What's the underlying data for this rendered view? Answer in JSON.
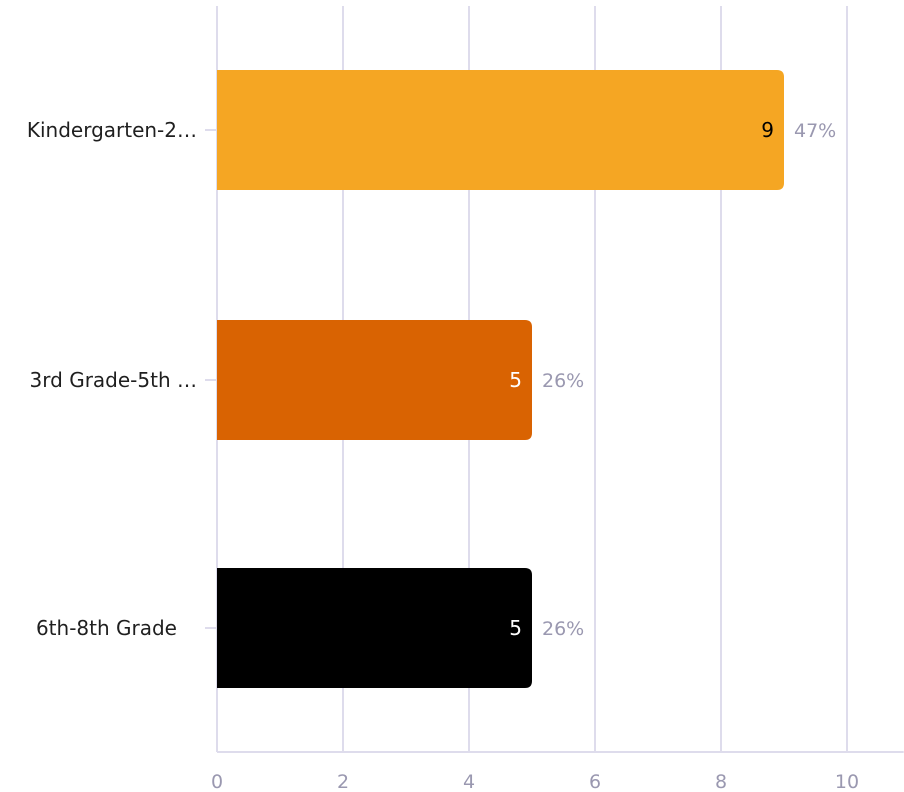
{
  "chart_data": {
    "type": "bar",
    "orientation": "horizontal",
    "categories": [
      "Kindergarten-2…",
      "3rd Grade-5th …",
      "6th-8th Grade"
    ],
    "values": [
      9,
      5,
      5
    ],
    "percent_labels": [
      "47%",
      "26%",
      "26%"
    ],
    "xlim": [
      0,
      10.9
    ],
    "xticks": [
      0,
      2,
      4,
      6,
      8,
      10
    ],
    "grid": true,
    "legend": "none",
    "colors": [
      "#f5a623",
      "#d96302",
      "#000000"
    ],
    "value_label_colors": [
      "#000000",
      "#ffffff",
      "#ffffff"
    ],
    "gridline_color": "#dedcec",
    "percent_label_color": "#9a98b0"
  }
}
